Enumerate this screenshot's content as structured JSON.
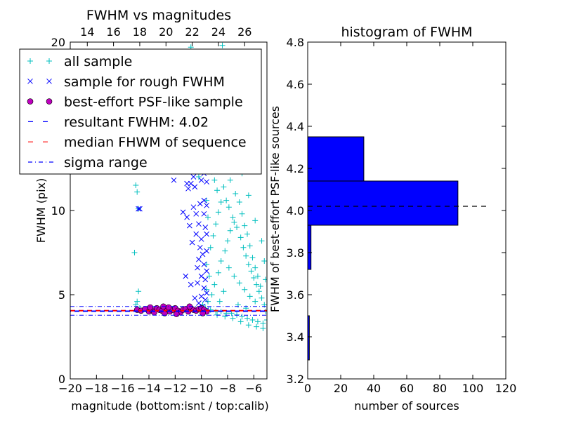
{
  "chart_data": [
    {
      "type": "scatter",
      "title": "FWHM vs magnitudes",
      "xlabel": "magnitude (bottom:isnt / top:calib)",
      "ylabel": "FWHM (pix)",
      "xlim": [
        -20,
        -5
      ],
      "ylim": [
        0,
        20
      ],
      "x_ticks": [
        "−20",
        "−18",
        "−16",
        "−14",
        "−12",
        "−10",
        "−8",
        "−6"
      ],
      "y_ticks": [
        "0",
        "5",
        "10",
        "15",
        "20"
      ],
      "top_ticks": [
        "14",
        "16",
        "18",
        "20",
        "22",
        "24",
        "26"
      ],
      "top_tick_positions": [
        -18.7,
        -16.7,
        -14.7,
        -12.7,
        -10.7,
        -8.7,
        -6.7
      ],
      "grid": false,
      "legend_position": "top-left",
      "legend": [
        {
          "label": "all sample",
          "marker": "plus",
          "color": "#00bfbf"
        },
        {
          "label": "sample for rough FWHM",
          "marker": "x",
          "color": "#0000ff"
        },
        {
          "label": "best-effort PSF-like sample",
          "marker": "circle",
          "color": "#bf00bf"
        },
        {
          "label": "resultant FWHM: 4.02",
          "marker": "dashed",
          "color": "#0000ff"
        },
        {
          "label": "median FHWM of sequence",
          "marker": "dashed",
          "color": "#ff0000"
        },
        {
          "label": "sigma range",
          "marker": "dashdot",
          "color": "#0000ff"
        }
      ],
      "resultant_fwhm": 4.02,
      "median_fwhm": 4.05,
      "sigma_range": [
        3.78,
        4.3
      ],
      "series": [
        {
          "name": "all sample",
          "marker": "plus",
          "color": "#00bfbf",
          "points": [
            [
              -15.1,
              7.5
            ],
            [
              -15.0,
              11.5
            ],
            [
              -14.9,
              11.1
            ],
            [
              -14.8,
              10.1
            ],
            [
              -14.9,
              4.6
            ],
            [
              -14.8,
              5.2
            ],
            [
              -14.7,
              4.2
            ],
            [
              -15.0,
              4.4
            ],
            [
              -11.2,
              12.8
            ],
            [
              -10.2,
              12.0
            ],
            [
              -9.5,
              14.0
            ],
            [
              -8.0,
              14.5
            ],
            [
              -9.0,
              17.0
            ],
            [
              -8.4,
              19.8
            ],
            [
              -10.8,
              19.7
            ],
            [
              -7.5,
              12.5
            ],
            [
              -8.3,
              11.4
            ],
            [
              -8.1,
              10.6
            ],
            [
              -7.9,
              10.2
            ],
            [
              -7.6,
              9.6
            ],
            [
              -7.3,
              9.0
            ],
            [
              -7.0,
              8.4
            ],
            [
              -6.8,
              7.8
            ],
            [
              -6.6,
              7.3
            ],
            [
              -6.4,
              6.8
            ],
            [
              -6.2,
              6.4
            ],
            [
              -6.0,
              6.0
            ],
            [
              -5.8,
              5.6
            ],
            [
              -5.6,
              5.2
            ],
            [
              -5.4,
              4.8
            ],
            [
              -5.2,
              4.4
            ],
            [
              -5.1,
              4.0
            ],
            [
              -5.0,
              3.5
            ],
            [
              -5.3,
              3.3
            ],
            [
              -5.7,
              3.4
            ],
            [
              -6.1,
              3.5
            ],
            [
              -6.5,
              3.6
            ],
            [
              -6.9,
              3.7
            ],
            [
              -7.3,
              3.8
            ],
            [
              -7.7,
              3.9
            ],
            [
              -8.1,
              3.9
            ],
            [
              -8.5,
              4.0
            ],
            [
              -8.9,
              4.0
            ],
            [
              -9.3,
              4.1
            ],
            [
              -9.7,
              4.2
            ],
            [
              -9.9,
              4.4
            ],
            [
              -9.2,
              5.0
            ],
            [
              -9.0,
              5.6
            ],
            [
              -8.7,
              6.3
            ],
            [
              -8.5,
              7.0
            ],
            [
              -8.2,
              7.6
            ],
            [
              -8.0,
              8.2
            ],
            [
              -7.8,
              8.8
            ],
            [
              -7.5,
              9.3
            ],
            [
              -9.3,
              7.8
            ],
            [
              -9.1,
              8.5
            ],
            [
              -8.9,
              9.2
            ],
            [
              -8.7,
              9.9
            ],
            [
              -8.5,
              10.5
            ],
            [
              -8.8,
              11.2
            ],
            [
              -9.0,
              11.8
            ],
            [
              -9.2,
              12.3
            ],
            [
              -9.4,
              12.8
            ],
            [
              -8.6,
              13.0
            ],
            [
              -8.2,
              13.3
            ],
            [
              -7.8,
              11.8
            ],
            [
              -7.4,
              11.0
            ],
            [
              -7.1,
              10.5
            ],
            [
              -6.9,
              9.8
            ],
            [
              -6.7,
              9.1
            ],
            [
              -6.5,
              8.6
            ],
            [
              -6.3,
              7.9
            ],
            [
              -6.1,
              7.2
            ],
            [
              -5.9,
              6.6
            ],
            [
              -5.7,
              6.1
            ],
            [
              -5.5,
              5.5
            ],
            [
              -5.9,
              4.6
            ],
            [
              -6.3,
              4.9
            ],
            [
              -6.7,
              5.3
            ],
            [
              -7.1,
              5.7
            ],
            [
              -7.5,
              6.1
            ],
            [
              -7.9,
              6.6
            ],
            [
              -8.3,
              5.2
            ],
            [
              -8.6,
              4.6
            ],
            [
              -7.2,
              4.4
            ],
            [
              -6.6,
              4.2
            ],
            [
              -9.5,
              4.6
            ],
            [
              -9.6,
              5.3
            ],
            [
              -9.4,
              6.1
            ],
            [
              -9.6,
              6.8
            ],
            [
              -9.5,
              9.6
            ],
            [
              -9.6,
              10.6
            ],
            [
              -9.4,
              13.6
            ],
            [
              -9.5,
              15.2
            ],
            [
              -9.3,
              16.3
            ],
            [
              -9.1,
              17.7
            ],
            [
              -8.9,
              18.6
            ],
            [
              -8.7,
              15.8
            ],
            [
              -8.4,
              17.2
            ],
            [
              -8.1,
              16.0
            ],
            [
              -7.7,
              14.0
            ],
            [
              -7.3,
              13.2
            ],
            [
              -6.9,
              12.2
            ],
            [
              -6.4,
              10.9
            ],
            [
              -5.9,
              9.4
            ],
            [
              -5.4,
              8.2
            ],
            [
              -5.2,
              7.0
            ],
            [
              -5.1,
              5.9
            ],
            [
              -5.3,
              3.0
            ],
            [
              -5.8,
              3.1
            ],
            [
              -6.4,
              3.2
            ],
            [
              -7.0,
              3.4
            ],
            [
              -7.6,
              3.6
            ],
            [
              -8.2,
              3.7
            ],
            [
              -8.8,
              3.8
            ],
            [
              -9.6,
              3.9
            ]
          ]
        },
        {
          "name": "sample for rough FWHM",
          "marker": "x",
          "color": "#0000ff",
          "points": [
            [
              -14.8,
              10.1
            ],
            [
              -14.7,
              10.1
            ],
            [
              -12.1,
              11.8
            ],
            [
              -11.1,
              11.6
            ],
            [
              -11.0,
              11.3
            ],
            [
              -10.8,
              11.6
            ],
            [
              -10.6,
              12.0
            ],
            [
              -10.5,
              11.4
            ],
            [
              -10.2,
              12.4
            ],
            [
              -10.0,
              11.8
            ],
            [
              -9.8,
              12.2
            ],
            [
              -9.6,
              11.7
            ],
            [
              -9.9,
              13.0
            ],
            [
              -10.6,
              10.2
            ],
            [
              -10.4,
              9.8
            ],
            [
              -11.4,
              9.9
            ],
            [
              -11.1,
              9.6
            ],
            [
              -10.1,
              10.4
            ],
            [
              -9.8,
              9.8
            ],
            [
              -10.2,
              9.2
            ],
            [
              -9.7,
              9.0
            ],
            [
              -10.4,
              8.6
            ],
            [
              -10.0,
              8.3
            ],
            [
              -9.6,
              8.6
            ],
            [
              -10.1,
              7.8
            ],
            [
              -9.9,
              7.4
            ],
            [
              -9.6,
              7.6
            ],
            [
              -10.2,
              7.1
            ],
            [
              -9.8,
              6.8
            ],
            [
              -9.6,
              6.4
            ],
            [
              -10.0,
              6.1
            ],
            [
              -9.7,
              5.9
            ],
            [
              -10.3,
              5.7
            ],
            [
              -9.8,
              5.4
            ],
            [
              -9.6,
              5.1
            ],
            [
              -10.0,
              4.9
            ],
            [
              -9.7,
              4.7
            ],
            [
              -11.2,
              6.1
            ],
            [
              -10.8,
              5.6
            ],
            [
              -10.5,
              4.8
            ],
            [
              -10.2,
              4.5
            ],
            [
              -9.9,
              4.3
            ],
            [
              -9.6,
              4.1
            ],
            [
              -10.9,
              9.1
            ],
            [
              -10.7,
              8.1
            ],
            [
              -10.3,
              6.6
            ],
            [
              -9.8,
              10.6
            ],
            [
              -9.6,
              10.3
            ]
          ]
        },
        {
          "name": "best-effort PSF-like sample",
          "marker": "circle",
          "color": "#bf00bf",
          "points": [
            [
              -14.9,
              4.1
            ],
            [
              -14.6,
              4.05
            ],
            [
              -14.3,
              4.15
            ],
            [
              -14.0,
              4.0
            ],
            [
              -13.8,
              4.1
            ],
            [
              -13.6,
              3.95
            ],
            [
              -13.4,
              4.2
            ],
            [
              -13.2,
              4.1
            ],
            [
              -13.0,
              4.05
            ],
            [
              -12.8,
              3.9
            ],
            [
              -12.6,
              4.15
            ],
            [
              -12.4,
              4.0
            ],
            [
              -12.2,
              4.1
            ],
            [
              -12.0,
              4.2
            ],
            [
              -11.8,
              4.05
            ],
            [
              -11.6,
              3.95
            ],
            [
              -11.4,
              4.1
            ],
            [
              -11.2,
              4.15
            ],
            [
              -11.0,
              4.0
            ],
            [
              -10.8,
              4.2
            ],
            [
              -10.6,
              4.1
            ],
            [
              -10.4,
              4.05
            ],
            [
              -10.2,
              4.15
            ],
            [
              -10.0,
              4.2
            ],
            [
              -9.8,
              4.1
            ],
            [
              -9.6,
              4.0
            ],
            [
              -13.9,
              4.25
            ],
            [
              -12.9,
              4.3
            ],
            [
              -11.9,
              3.85
            ],
            [
              -10.9,
              4.3
            ],
            [
              -9.9,
              3.9
            ],
            [
              -12.5,
              4.25
            ]
          ]
        }
      ]
    },
    {
      "type": "bar",
      "orientation": "horizontal",
      "title": "histogram of FWHM",
      "xlabel": "number of sources",
      "ylabel": "FWHM of best-effort PSF-like sources",
      "xlim": [
        0,
        120
      ],
      "ylim": [
        3.2,
        4.8
      ],
      "x_ticks": [
        "0",
        "20",
        "40",
        "60",
        "80",
        "100",
        "120"
      ],
      "y_ticks": [
        "3.2",
        "3.4",
        "3.6",
        "3.8",
        "4.0",
        "4.2",
        "4.4",
        "4.6",
        "4.8"
      ],
      "bins": [
        {
          "low": 3.29,
          "high": 3.5,
          "count": 1
        },
        {
          "low": 3.5,
          "high": 3.72,
          "count": 0
        },
        {
          "low": 3.72,
          "high": 3.93,
          "count": 2
        },
        {
          "low": 3.93,
          "high": 4.14,
          "count": 91
        },
        {
          "low": 4.14,
          "high": 4.35,
          "count": 34
        }
      ],
      "bar_color": "#0000ff",
      "reference_line": 4.02
    }
  ]
}
